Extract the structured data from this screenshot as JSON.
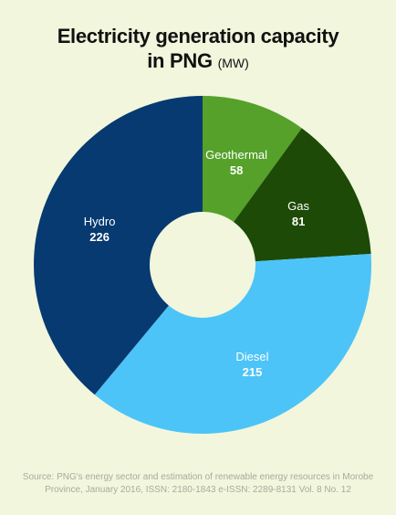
{
  "title": {
    "line1": "Electricity generation capacity",
    "line2": "in PNG",
    "unit": "(MW)"
  },
  "chart_data": {
    "type": "pie",
    "variant": "donut",
    "categories": [
      "Geothermal",
      "Gas",
      "Diesel",
      "Hydro"
    ],
    "values": [
      58,
      81,
      215,
      226
    ],
    "colors": [
      "#55a12a",
      "#1d4a06",
      "#4cc4f8",
      "#073a70"
    ],
    "value_labels": [
      "58",
      "81",
      "215",
      "226"
    ]
  },
  "source": {
    "line1": "Source: PNG's energy sector and estimation of renewable energy resources in Morobe",
    "line2": "Province, January 2016, ISSN: 2180-1843  e-ISSN: 2289-8131  Vol. 8 No. 12"
  }
}
